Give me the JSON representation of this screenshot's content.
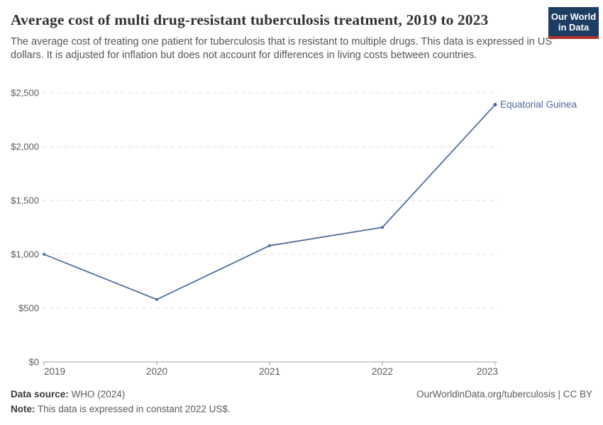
{
  "header": {
    "title": "Average cost of multi drug-resistant tuberculosis treatment, 2019 to 2023",
    "subtitle": "The average cost of treating one patient for tuberculosis that is resistant to multiple drugs. This data is expressed in US dollars. It is adjusted for inflation but does not account for differences in living costs between countries.",
    "logo": {
      "line1": "Our World",
      "line2": "in Data",
      "bg_color": "#1d3d63",
      "stripe_color": "#b0322a"
    }
  },
  "chart_data": {
    "type": "line",
    "title": "Average cost of multi drug-resistant tuberculosis treatment, 2019 to 2023",
    "x": [
      2019,
      2020,
      2021,
      2022,
      2023
    ],
    "xtick_labels": [
      "2019",
      "2020",
      "2021",
      "2022",
      "2023"
    ],
    "series": [
      {
        "name": "Equatorial Guinea",
        "color": "#4c6a9c",
        "values": [
          1000,
          580,
          1080,
          1250,
          2390
        ]
      }
    ],
    "ylim": [
      0,
      2500
    ],
    "yticks": [
      0,
      500,
      1000,
      1500,
      2000,
      2500
    ],
    "ytick_labels": [
      "$0",
      "$500",
      "$1,000",
      "$1,500",
      "$2,000",
      "$2,500"
    ],
    "grid": "horizontal-dashed",
    "legend_position": "line-end-label",
    "axis_color": "#a6a6a6",
    "grid_color": "#dcdcdc",
    "tick_text_color": "#5b5b5b"
  },
  "footer": {
    "datasource_label": "Data source:",
    "datasource_value": " WHO (2024)",
    "note_label": "Note:",
    "note_value": " This data is expressed in constant 2022 US$.",
    "link": "OurWorldinData.org/tuberculosis | CC BY"
  }
}
